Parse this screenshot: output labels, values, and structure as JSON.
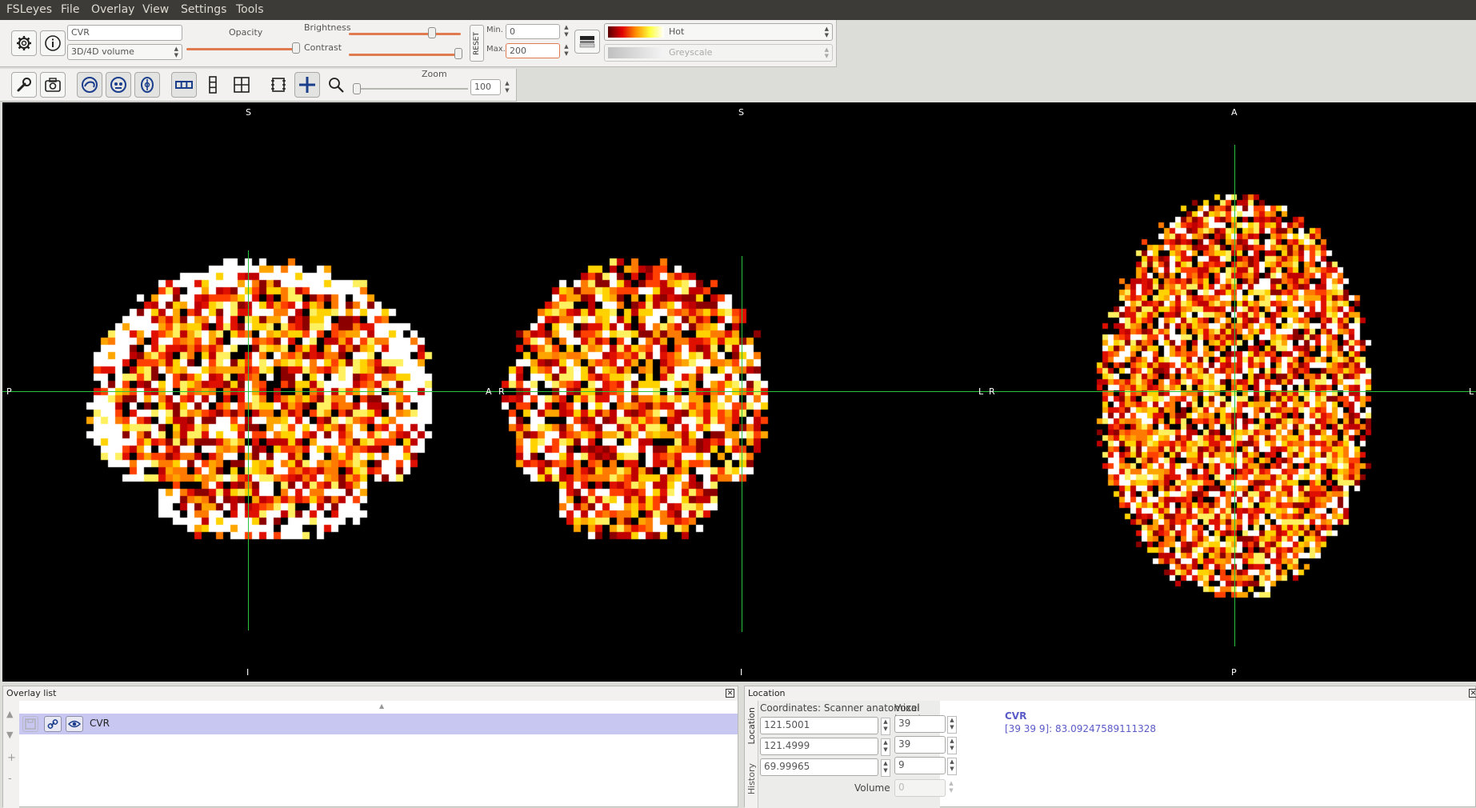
{
  "menubar": {
    "items": [
      "FSLeyes",
      "File",
      "Overlay",
      "View",
      "Settings",
      "Tools"
    ]
  },
  "overlay_toolbar": {
    "overlay_name": "CVR",
    "overlay_type": "3D/4D volume",
    "opacity_label": "Opacity",
    "brightness_label": "Brightness",
    "contrast_label": "Contrast",
    "reset_label": "RESET",
    "min_label": "Min.",
    "min_value": "0",
    "max_label": "Max.",
    "max_value": "200",
    "colormap": "Hot",
    "neg_colormap": "Greyscale",
    "opacity_level": 1.0,
    "brightness_level": 0.7,
    "contrast_level": 0.95
  },
  "ortho_toolbar": {
    "zoom_label": "Zoom",
    "zoom_value": "100",
    "icons": [
      "wrench-icon",
      "camera-icon",
      "sagittal-icon",
      "coronal-icon",
      "axial-icon",
      "horizontal-layout-icon",
      "vertical-layout-icon",
      "grid-layout-icon",
      "toggle-labels-icon",
      "cursor-icon",
      "zoom-icon"
    ]
  },
  "views": [
    {
      "name": "sagittal",
      "top": "S",
      "bottom": "I",
      "left": "P",
      "right": "A"
    },
    {
      "name": "coronal",
      "top": "S",
      "bottom": "I",
      "left": "R",
      "right": "L"
    },
    {
      "name": "axial",
      "top": "A",
      "bottom": "P",
      "left": "R",
      "right": "L"
    }
  ],
  "overlay_list": {
    "title": "Overlay list",
    "items": [
      {
        "name": "CVR"
      }
    ]
  },
  "location": {
    "title": "Location",
    "coords_label": "Coordinates: Scanner anatomical",
    "voxel_label": "Voxel location",
    "coords": [
      "121.5001",
      "121.4999",
      "69.99965"
    ],
    "voxels": [
      "39",
      "39",
      "9"
    ],
    "volume_label": "Volume",
    "volume_value": "0",
    "tab_location": "Location",
    "tab_history": "History",
    "info_name": "CVR",
    "info_value": "[39 39 9]: 83.09247589111328"
  },
  "colors": {
    "crosshair": "#29c23d",
    "accent": "#e07b4f",
    "selected_row": "#c7c7f2",
    "info_text": "#5a5ac8"
  }
}
